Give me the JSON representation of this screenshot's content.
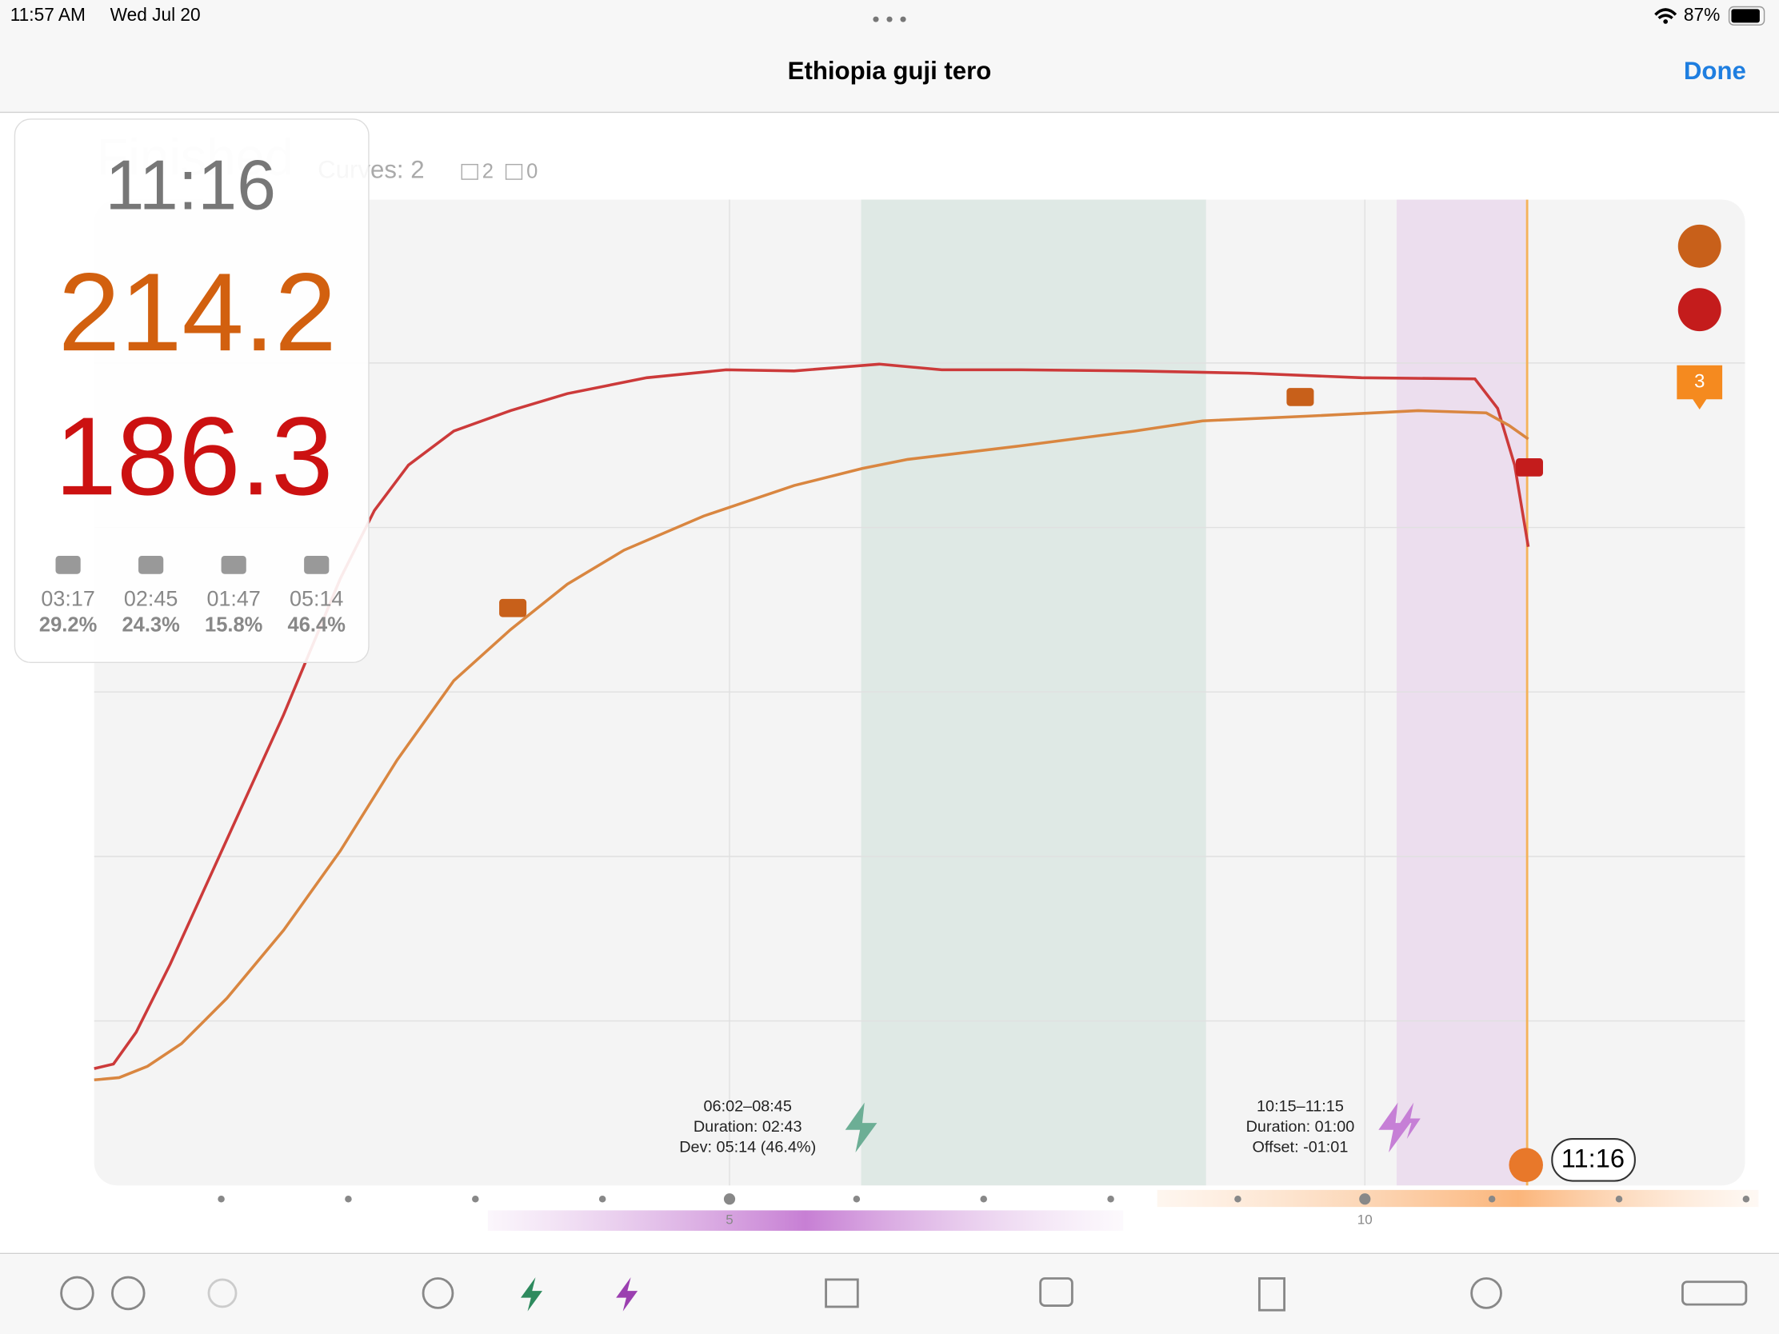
{
  "status_bar": {
    "time": "11:57 AM",
    "date": "Wed Jul 20",
    "battery": "87%"
  },
  "nav": {
    "title": "Ethiopia guji tero",
    "done": "Done"
  },
  "header": {
    "state": "Finished",
    "curves": "Curves: 2",
    "edited": "2",
    "samples": "0"
  },
  "overlay": {
    "time": "11:16",
    "bean_temp": "214.2",
    "env_temp": "186.3",
    "phases": [
      {
        "time": "03:17",
        "percent": "29.2%"
      },
      {
        "time": "02:45",
        "percent": "24.3%"
      },
      {
        "time": "01:47",
        "percent": "15.8%"
      },
      {
        "time": "05:14",
        "percent": "46.4%"
      }
    ]
  },
  "badge": "3",
  "zones": [
    {
      "lines": [
        "06:02–08:45",
        "Duration: 02:43",
        "Dev: 05:14 (46.4%)"
      ]
    },
    {
      "lines": [
        "10:15–11:15",
        "Duration: 01:00",
        "Offset: -01:01"
      ]
    }
  ],
  "end_time": "11:16",
  "x_ticks": [
    "5",
    "10"
  ]
}
